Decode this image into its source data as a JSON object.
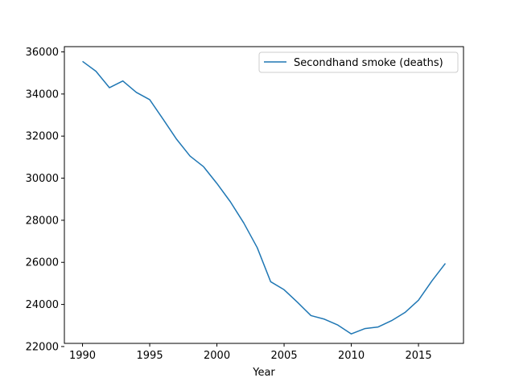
{
  "chart_data": {
    "type": "line",
    "title": "",
    "xlabel": "Year",
    "ylabel": "",
    "xlim": [
      1988.65,
      2018.35
    ],
    "ylim": [
      22150,
      36250
    ],
    "xticks": [
      1990,
      1995,
      2000,
      2005,
      2010,
      2015
    ],
    "yticks": [
      22000,
      24000,
      26000,
      28000,
      30000,
      32000,
      34000,
      36000
    ],
    "grid": false,
    "legend_position": "upper right",
    "series": [
      {
        "name": "Secondhand smoke (deaths)",
        "color": "#1f77b4",
        "x": [
          1990,
          1991,
          1992,
          1993,
          1994,
          1995,
          1996,
          1997,
          1998,
          1999,
          2000,
          2001,
          2002,
          2003,
          2004,
          2005,
          2006,
          2007,
          2008,
          2009,
          2010,
          2011,
          2012,
          2013,
          2014,
          2015,
          2016,
          2017
        ],
        "y": [
          35550,
          35080,
          34300,
          34620,
          34080,
          33730,
          32800,
          31850,
          31050,
          30550,
          29750,
          28880,
          27870,
          26700,
          25080,
          24700,
          24100,
          23470,
          23300,
          23020,
          22600,
          22850,
          22930,
          23230,
          23620,
          24200,
          25120,
          25950
        ]
      }
    ]
  }
}
